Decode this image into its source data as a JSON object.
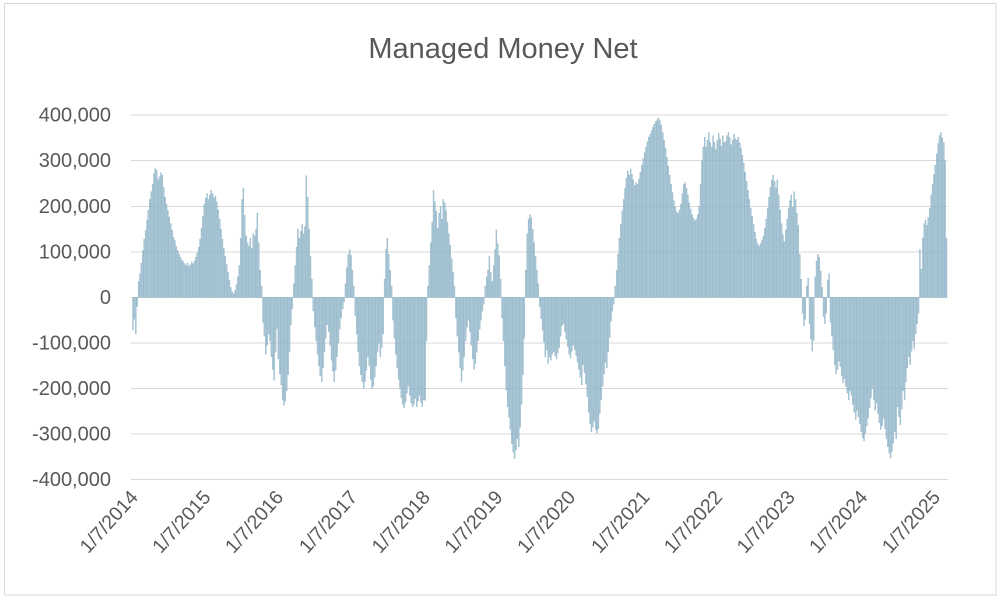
{
  "chart_data": {
    "type": "bar",
    "title": "Managed Money Net",
    "series_name": "Managed Money Net",
    "frequency": "weekly",
    "legend": "none",
    "grid": true,
    "ylim": [
      -400000,
      400000
    ],
    "y_tick_values": [
      400000,
      300000,
      200000,
      100000,
      0,
      -100000,
      -200000,
      -300000,
      -400000
    ],
    "y_tick_labels": [
      "400,000",
      "300,000",
      "200,000",
      "100,000",
      "0",
      "-100,000",
      "-200,000",
      "-300,000",
      "-400,000"
    ],
    "x_tick_labels": [
      "1/7/2014",
      "1/7/2015",
      "1/7/2016",
      "1/7/2017",
      "1/7/2018",
      "1/7/2019",
      "1/7/2020",
      "1/7/2021",
      "1/7/2022",
      "1/7/2023",
      "1/7/2024",
      "1/7/2025"
    ],
    "x_tick_indices": [
      0,
      52,
      104,
      157,
      209,
      261,
      313,
      366,
      418,
      470,
      522,
      574
    ],
    "colors": {
      "bar_fill": "#a5c6d7",
      "bar_stroke": "#7aa3b8",
      "gridline": "#d9d9d9",
      "text": "#595959",
      "border": "#d9d9d9",
      "background": "#ffffff"
    },
    "values": [
      -72000,
      -48000,
      -80000,
      -20000,
      35000,
      52000,
      75000,
      103000,
      128000,
      147000,
      170000,
      191000,
      215000,
      232000,
      248000,
      272000,
      283000,
      279000,
      258000,
      265000,
      274000,
      268000,
      242000,
      220000,
      205000,
      191000,
      176000,
      162000,
      148000,
      132000,
      125000,
      112000,
      103000,
      95000,
      88000,
      82000,
      78000,
      74000,
      70000,
      75000,
      68000,
      72000,
      78000,
      74000,
      80000,
      88000,
      98000,
      110000,
      128000,
      152000,
      178000,
      205000,
      218000,
      228000,
      215000,
      225000,
      235000,
      228000,
      218000,
      222000,
      210000,
      192000,
      172000,
      150000,
      128000,
      108000,
      90000,
      72000,
      55000,
      38000,
      22000,
      12000,
      8000,
      15000,
      28000,
      45000,
      70000,
      130000,
      215000,
      240000,
      180000,
      135000,
      120000,
      112000,
      130000,
      108000,
      140000,
      135000,
      150000,
      185000,
      120000,
      60000,
      25000,
      -55000,
      -85000,
      -125000,
      -105000,
      -80000,
      -95000,
      -130000,
      -158000,
      -182000,
      -120000,
      -68000,
      -135000,
      -168000,
      -192000,
      -225000,
      -237000,
      -228000,
      -205000,
      -170000,
      -120000,
      -60000,
      -25000,
      30000,
      70000,
      110000,
      150000,
      130000,
      145000,
      160000,
      140000,
      155000,
      267000,
      220000,
      150000,
      90000,
      40000,
      -30000,
      -65000,
      -95000,
      -125000,
      -150000,
      -172000,
      -185000,
      -155000,
      -120000,
      -90000,
      -60000,
      -75000,
      -105000,
      -138000,
      -162000,
      -185000,
      -160000,
      -130000,
      -100000,
      -70000,
      -45000,
      -25000,
      -10000,
      30000,
      65000,
      95000,
      105000,
      92000,
      60000,
      25000,
      -40000,
      -80000,
      -120000,
      -150000,
      -170000,
      -185000,
      -200000,
      -185000,
      -160000,
      -130000,
      -150000,
      -180000,
      -200000,
      -195000,
      -175000,
      -150000,
      -120000,
      -100000,
      -130000,
      -110000,
      -80000,
      40000,
      105000,
      130000,
      95000,
      60000,
      25000,
      -50000,
      -90000,
      -125000,
      -155000,
      -180000,
      -200000,
      -220000,
      -235000,
      -242000,
      -230000,
      -210000,
      -195000,
      -215000,
      -232000,
      -240000,
      -235000,
      -222000,
      -240000,
      -228000,
      -215000,
      -230000,
      -240000,
      -225000,
      -226000,
      -95000,
      25000,
      70000,
      120000,
      165000,
      235000,
      210000,
      190000,
      152000,
      185000,
      200000,
      172000,
      215000,
      208000,
      190000,
      165000,
      140000,
      115000,
      85000,
      55000,
      25000,
      -45000,
      -85000,
      -120000,
      -155000,
      -185000,
      -160000,
      -130000,
      -95000,
      -65000,
      -50000,
      -75000,
      -105000,
      -135000,
      -158000,
      -145000,
      -120000,
      -95000,
      -70000,
      -50000,
      -30000,
      -15000,
      25000,
      45000,
      60000,
      90000,
      55000,
      35000,
      70000,
      105000,
      148000,
      118000,
      92000,
      40000,
      -45000,
      -95000,
      -150000,
      -204000,
      -240000,
      -263000,
      -290000,
      -321000,
      -340000,
      -354000,
      -335000,
      -310000,
      -328000,
      -285000,
      -235000,
      -170000,
      -90000,
      60000,
      140000,
      172000,
      182000,
      175000,
      150000,
      120000,
      90000,
      60000,
      30000,
      -20000,
      -47000,
      -72000,
      -98000,
      -131000,
      -116000,
      -145000,
      -131000,
      -138000,
      -125000,
      -120000,
      -128000,
      -135000,
      -122000,
      -110000,
      -85000,
      -62000,
      -58000,
      -75000,
      -92000,
      -108000,
      -125000,
      -133000,
      -118000,
      -105000,
      -115000,
      -128000,
      -142000,
      -158000,
      -175000,
      -192000,
      -148000,
      -165000,
      -190000,
      -218000,
      -252000,
      -277000,
      -295000,
      -285000,
      -272000,
      -290000,
      -298000,
      -288000,
      -255000,
      -225000,
      -195000,
      -168000,
      -143000,
      -155000,
      -120000,
      -88000,
      -52000,
      -30000,
      -15000,
      25000,
      60000,
      95000,
      130000,
      160000,
      190000,
      215000,
      240000,
      262000,
      278000,
      268000,
      282000,
      270000,
      258000,
      246000,
      252000,
      248000,
      260000,
      275000,
      290000,
      305000,
      318000,
      330000,
      342000,
      352000,
      358000,
      366000,
      374000,
      380000,
      386000,
      390000,
      394000,
      388000,
      378000,
      362000,
      345000,
      328000,
      308000,
      288000,
      268000,
      248000,
      230000,
      212000,
      198000,
      188000,
      185000,
      192000,
      205000,
      228000,
      248000,
      252000,
      240000,
      225000,
      208000,
      194000,
      182000,
      174000,
      168000,
      172000,
      182000,
      200000,
      248000,
      300000,
      330000,
      352000,
      330000,
      345000,
      362000,
      340000,
      330000,
      355000,
      340000,
      325000,
      345000,
      360000,
      348000,
      332000,
      355000,
      340000,
      342000,
      355000,
      362000,
      350000,
      335000,
      345000,
      358000,
      348000,
      345000,
      352000,
      340000,
      328000,
      312000,
      295000,
      275000,
      255000,
      235000,
      215000,
      196000,
      178000,
      160000,
      143000,
      128000,
      118000,
      113000,
      118000,
      125000,
      135000,
      152000,
      172000,
      195000,
      220000,
      242000,
      258000,
      268000,
      255000,
      240000,
      258000,
      225000,
      192000,
      162000,
      138000,
      122000,
      148000,
      172000,
      195000,
      212000,
      225000,
      198000,
      232000,
      215000,
      185000,
      158000,
      95000,
      40000,
      -35000,
      -62000,
      -48000,
      25000,
      42000,
      -58000,
      -92000,
      -118000,
      -95000,
      45000,
      80000,
      95000,
      88000,
      58000,
      22000,
      -42000,
      -58000,
      -35000,
      38000,
      52000,
      -55000,
      -85000,
      -115000,
      -148000,
      -168000,
      -158000,
      -140000,
      -152000,
      -172000,
      -188000,
      -178000,
      -195000,
      -210000,
      -225000,
      -205000,
      -215000,
      -235000,
      -252000,
      -268000,
      -248000,
      -262000,
      -278000,
      -295000,
      -308000,
      -315000,
      -298000,
      -282000,
      -265000,
      -242000,
      -220000,
      -200000,
      -225000,
      -248000,
      -232000,
      -255000,
      -275000,
      -290000,
      -282000,
      -265000,
      -288000,
      -310000,
      -328000,
      -342000,
      -352000,
      -338000,
      -320000,
      -295000,
      -310000,
      -240000,
      -262000,
      -280000,
      -245000,
      -205000,
      -225000,
      -185000,
      -155000,
      -130000,
      -148000,
      -118000,
      -95000,
      -112000,
      -80000,
      -58000,
      -35000,
      105000,
      62000,
      130000,
      162000,
      170000,
      158000,
      175000,
      195000,
      225000,
      248000,
      270000,
      290000,
      315000,
      338000,
      355000,
      362000,
      350000,
      340000,
      300000,
      130000
    ]
  }
}
